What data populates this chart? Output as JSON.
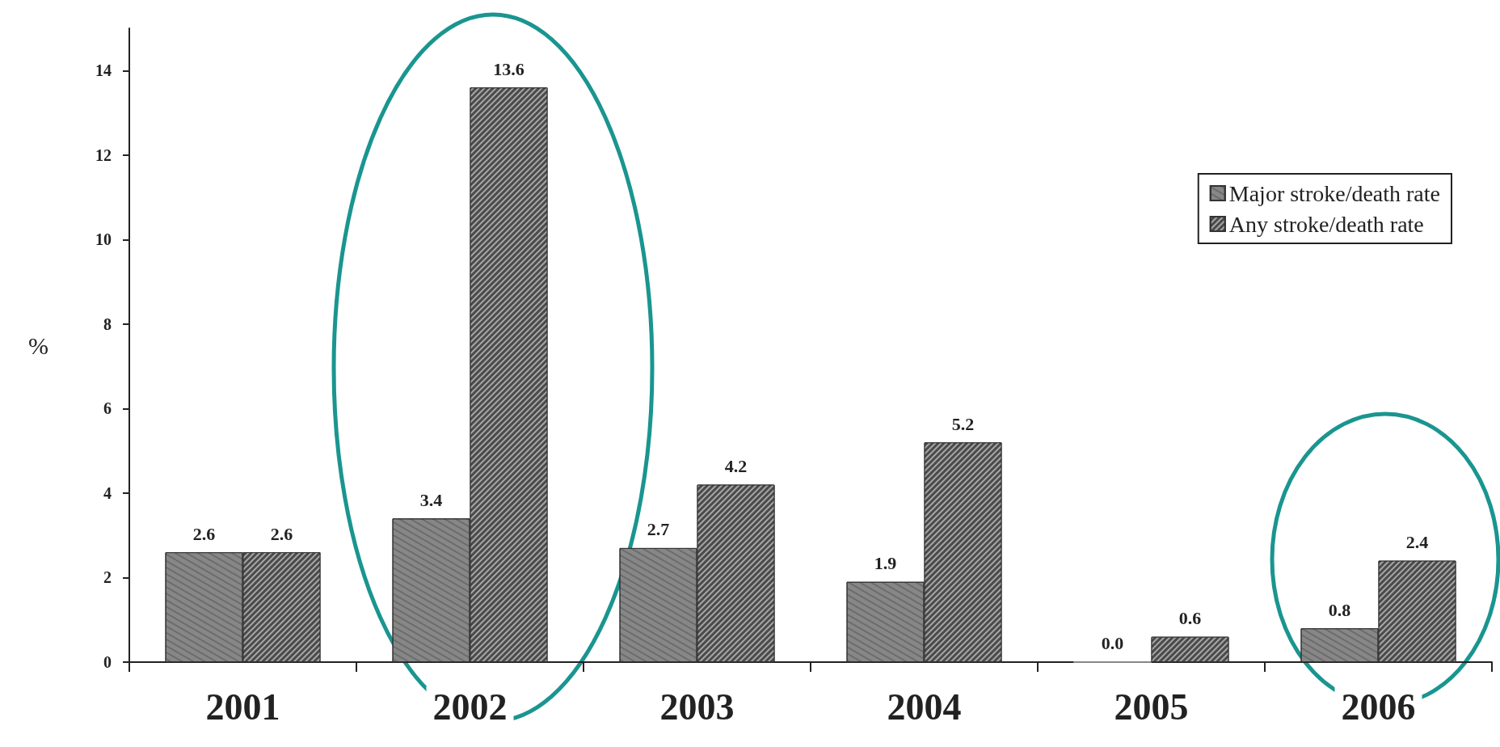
{
  "chart_data": {
    "type": "bar",
    "ylabel": "%",
    "categories": [
      "2001",
      "2002",
      "2003",
      "2004",
      "2005",
      "2006"
    ],
    "series": [
      {
        "name": "Major stroke/death rate",
        "color": "#878787",
        "values": [
          2.6,
          3.4,
          2.7,
          1.9,
          0,
          0.8
        ],
        "value_labels": [
          "2.6",
          "3.4",
          "2.7",
          "1.9",
          "0.0",
          "0.8"
        ]
      },
      {
        "name": "Any stroke/death rate",
        "color": "#4a4a4a",
        "values": [
          2.6,
          13.6,
          4.2,
          5.2,
          0.6,
          2.4
        ],
        "value_labels": [
          "2.6",
          "13.6",
          "4.2",
          "5.2",
          "0.6",
          "2.4"
        ]
      }
    ],
    "ylim": [
      0,
      15
    ],
    "yticks": [
      0,
      2,
      4,
      6,
      8,
      10,
      12,
      14
    ],
    "legend": "top right",
    "grid": false
  }
}
